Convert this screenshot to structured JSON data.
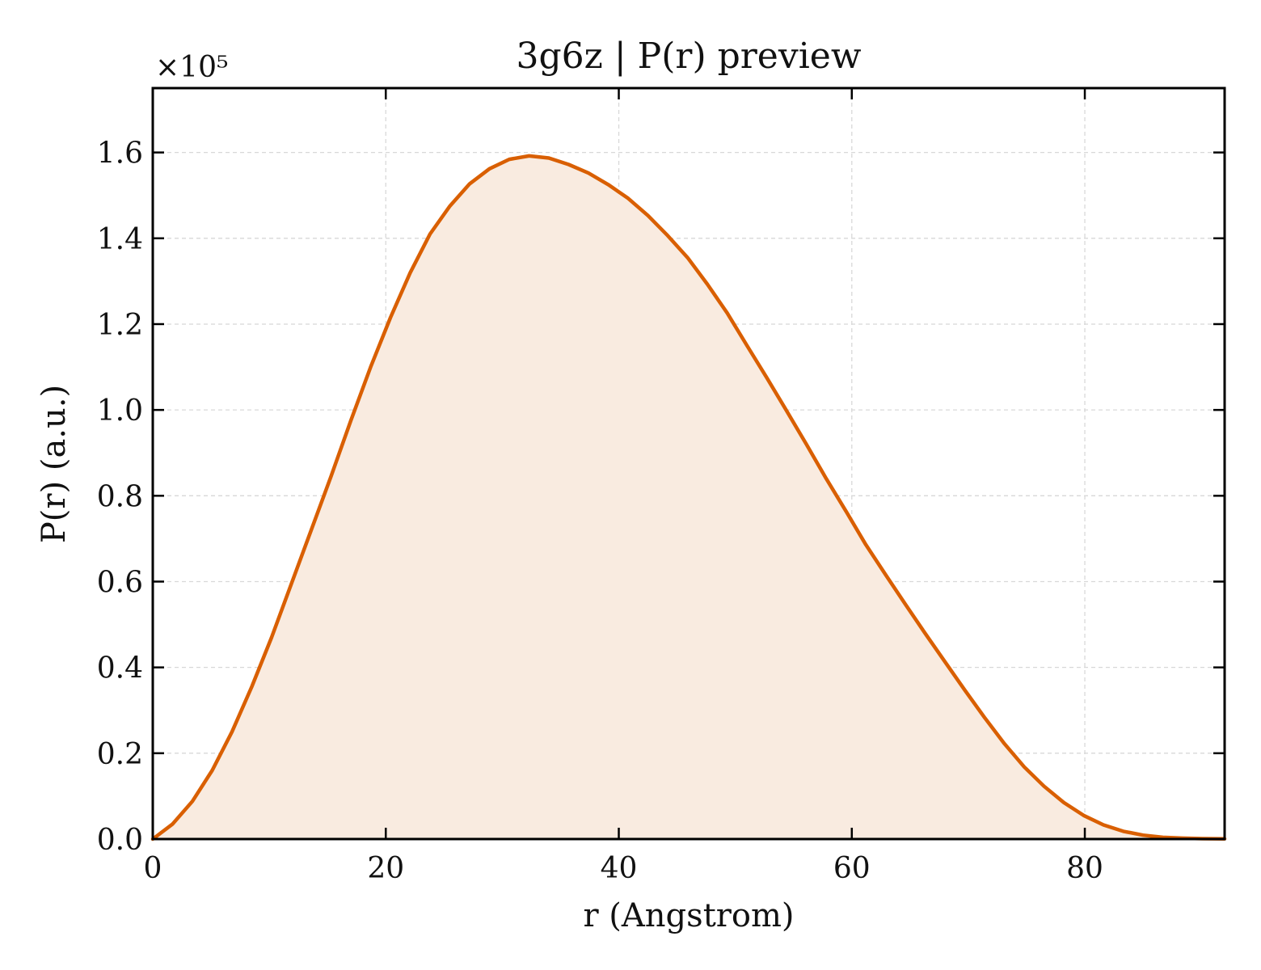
{
  "chart_data": {
    "type": "area",
    "title": "3g6z | P(r) preview",
    "xlabel": "r (Angstrom)",
    "ylabel": "P(r) (a.u.)",
    "y_multiplier_label": "×10⁵",
    "y_multiplier": 100000,
    "xlim": [
      0,
      92
    ],
    "ylim": [
      0,
      1.75
    ],
    "xticks": [
      0,
      20,
      40,
      60,
      80
    ],
    "yticks": [
      0.0,
      0.2,
      0.4,
      0.6,
      0.8,
      1.0,
      1.2,
      1.4,
      1.6
    ],
    "ytick_labels": [
      "0.0",
      "0.2",
      "0.4",
      "0.6",
      "0.8",
      "1.0",
      "1.2",
      "1.4",
      "1.6"
    ],
    "grid": true,
    "legend": "none",
    "colors": {
      "line": "#d95f02",
      "fill": "#f9ebe0",
      "grid": "#d8d8d8"
    },
    "x": [
      0,
      1.7,
      3.4,
      5.1,
      6.8,
      8.5,
      10.2,
      11.9,
      13.6,
      15.3,
      17.0,
      18.7,
      20.4,
      22.1,
      23.8,
      25.5,
      27.2,
      28.9,
      30.6,
      32.3,
      34.0,
      35.7,
      37.4,
      39.1,
      40.8,
      42.5,
      44.2,
      45.9,
      47.6,
      49.3,
      51.0,
      52.7,
      54.4,
      56.1,
      57.8,
      59.5,
      61.2,
      62.9,
      64.6,
      66.3,
      68.0,
      69.7,
      71.4,
      73.1,
      74.8,
      76.5,
      78.2,
      79.9,
      81.6,
      83.3,
      85.0,
      86.7,
      88.4,
      90.1,
      92.0
    ],
    "y": [
      0.0,
      0.035,
      0.088,
      0.16,
      0.25,
      0.355,
      0.47,
      0.595,
      0.72,
      0.845,
      0.975,
      1.1,
      1.215,
      1.32,
      1.41,
      1.475,
      1.527,
      1.562,
      1.584,
      1.592,
      1.587,
      1.572,
      1.552,
      1.525,
      1.493,
      1.453,
      1.406,
      1.355,
      1.293,
      1.226,
      1.15,
      1.075,
      0.998,
      0.92,
      0.84,
      0.764,
      0.686,
      0.616,
      0.547,
      0.479,
      0.413,
      0.347,
      0.283,
      0.222,
      0.168,
      0.123,
      0.085,
      0.055,
      0.033,
      0.018,
      0.009,
      0.004,
      0.002,
      0.001,
      0.0005
    ]
  }
}
